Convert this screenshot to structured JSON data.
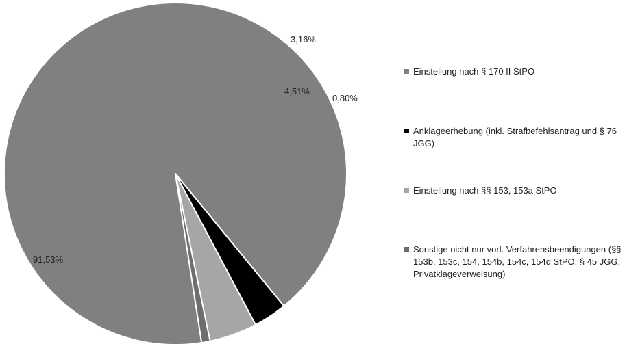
{
  "chart_data": {
    "type": "pie",
    "title": "",
    "slices": [
      {
        "label": "Einstellung nach § 170 II StPO",
        "value": 91.53,
        "value_label": "91,53%",
        "color": "#808080"
      },
      {
        "label": "Anklageerhebung (inkl. Strafbefehlsantrag und § 76 JGG)",
        "value": 3.16,
        "value_label": "3,16%",
        "color": "#000000"
      },
      {
        "label": "Einstellung nach §§ 153, 153a StPO",
        "value": 4.51,
        "value_label": "4,51%",
        "color": "#a6a6a6"
      },
      {
        "label": "Sonstige nicht nur vorl. Verfahrensbeendigungen (§§ 153b, 153c, 154, 154b, 154c, 154d StPO, § 45 JGG, Privatklageverweisung)",
        "value": 0.8,
        "value_label": "0,80%",
        "color": "#6e6e6e"
      }
    ],
    "legend_position": "right",
    "slice_border_color": "#ffffff"
  }
}
